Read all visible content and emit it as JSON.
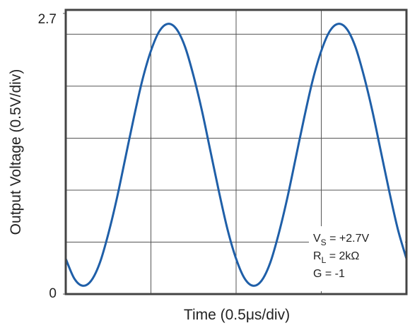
{
  "chart_data": {
    "type": "line",
    "x_label": "Time (0.5μs/div)",
    "y_label": "Output Voltage (0.5V/div)",
    "xlim": [
      0,
      2
    ],
    "xgrid": [
      0.5,
      1,
      1.5
    ],
    "ylim": [
      0,
      2.7
    ],
    "yticks": [
      0,
      2.7
    ],
    "ygrid": [
      0.5,
      1,
      1.5,
      2,
      2.5
    ],
    "grid": true,
    "series": [
      {
        "color": "#1f5fa8",
        "x": [
          0,
          0.05,
          0.1,
          0.15,
          0.2,
          0.25,
          0.3,
          0.35,
          0.4,
          0.45,
          0.5,
          0.55,
          0.6,
          0.65,
          0.7,
          0.75,
          0.8,
          0.85,
          0.9,
          0.95,
          1,
          1.05,
          1.1,
          1.15,
          1.2,
          1.25,
          1.3,
          1.35,
          1.4,
          1.45,
          1.5,
          1.55,
          1.6,
          1.65,
          1.7,
          1.75,
          1.8,
          1.85,
          1.9,
          1.95,
          2
        ],
        "values": [
          0.34,
          0.15,
          0.08,
          0.13,
          0.3,
          0.58,
          0.92,
          1.31,
          1.7,
          2.06,
          2.34,
          2.53,
          2.6,
          2.55,
          2.38,
          2.1,
          1.76,
          1.37,
          0.98,
          0.62,
          0.34,
          0.15,
          0.08,
          0.13,
          0.3,
          0.58,
          0.92,
          1.31,
          1.7,
          2.06,
          2.34,
          2.53,
          2.6,
          2.55,
          2.38,
          2.1,
          1.76,
          1.37,
          0.98,
          0.62,
          0.34
        ]
      }
    ],
    "annotations": [
      {
        "main": "V",
        "sub": "S",
        "rest": " = +2.7V"
      },
      {
        "main": "R",
        "sub": "L",
        "rest": " = 2kΩ"
      },
      {
        "main": "G = -1"
      }
    ]
  }
}
